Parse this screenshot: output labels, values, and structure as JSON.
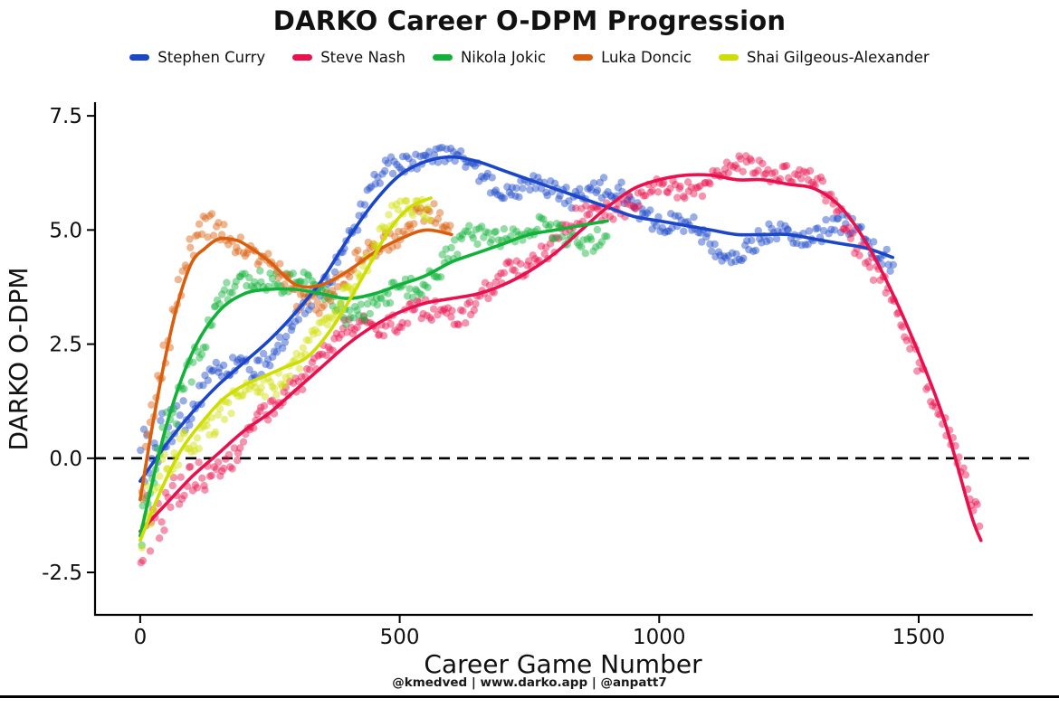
{
  "chart_data": {
    "type": "scatter",
    "title": "DARKO Career O-DPM Progression",
    "xlabel": "Career Game Number",
    "ylabel": "DARKO O-DPM",
    "caption": "@kmedved | www.darko.app | @anpatt7",
    "xlim": [
      -87,
      1718
    ],
    "ylim": [
      -3.43,
      7.76
    ],
    "xticks": [
      0,
      500,
      1000,
      1500
    ],
    "xtick_labels": [
      "0",
      "500",
      "1000",
      "1500"
    ],
    "yticks": [
      -2.5,
      0,
      2.5,
      5,
      7.5
    ],
    "ytick_labels": [
      "-2.5",
      "0.0",
      "2.5",
      "5.0",
      "7.5"
    ],
    "zero_line_y": 0,
    "grid": false,
    "legend_position": "top",
    "scatter_style": {
      "alpha": 0.45,
      "radius": 4.2
    },
    "series": [
      {
        "name": "Stephen Curry",
        "color": "#1b46c8",
        "x": [
          0,
          50,
          100,
          150,
          200,
          250,
          300,
          350,
          400,
          450,
          500,
          550,
          600,
          650,
          700,
          750,
          800,
          850,
          900,
          950,
          1000,
          1050,
          1100,
          1150,
          1200,
          1250,
          1300,
          1350,
          1400,
          1450
        ],
        "y": [
          -0.5,
          0.3,
          1.0,
          1.6,
          2.1,
          2.6,
          3.2,
          3.9,
          4.8,
          5.6,
          6.2,
          6.5,
          6.6,
          6.5,
          6.3,
          6.1,
          5.9,
          5.7,
          5.5,
          5.3,
          5.2,
          5.1,
          5.0,
          4.9,
          4.9,
          4.9,
          4.8,
          4.7,
          4.6,
          4.4
        ]
      },
      {
        "name": "Steve Nash",
        "color": "#e8114e",
        "x": [
          0,
          50,
          100,
          150,
          200,
          250,
          300,
          350,
          400,
          450,
          500,
          550,
          600,
          650,
          700,
          750,
          800,
          850,
          900,
          950,
          1000,
          1050,
          1100,
          1150,
          1200,
          1250,
          1300,
          1350,
          1400,
          1450,
          1500,
          1550,
          1600,
          1620
        ],
        "y": [
          -1.6,
          -1.0,
          -0.4,
          0.1,
          0.6,
          1.0,
          1.5,
          2.0,
          2.5,
          2.9,
          3.2,
          3.4,
          3.5,
          3.6,
          3.8,
          4.1,
          4.5,
          5.0,
          5.5,
          5.9,
          6.1,
          6.2,
          6.2,
          6.1,
          6.1,
          6.0,
          5.9,
          5.5,
          4.7,
          3.6,
          2.3,
          0.8,
          -1.2,
          -1.8
        ]
      },
      {
        "name": "Nikola Jokic",
        "color": "#12b23a",
        "x": [
          0,
          50,
          100,
          150,
          200,
          250,
          300,
          350,
          400,
          450,
          500,
          550,
          600,
          650,
          700,
          750,
          800,
          850,
          900
        ],
        "y": [
          -1.7,
          0.7,
          2.3,
          3.2,
          3.6,
          3.7,
          3.7,
          3.6,
          3.5,
          3.6,
          3.8,
          4.0,
          4.3,
          4.5,
          4.7,
          4.9,
          5.0,
          5.1,
          5.2
        ]
      },
      {
        "name": "Luka Doncic",
        "color": "#d95f0e",
        "x": [
          0,
          25,
          50,
          75,
          100,
          125,
          150,
          175,
          200,
          250,
          300,
          350,
          400,
          450,
          500,
          550,
          600
        ],
        "y": [
          -0.9,
          0.8,
          2.3,
          3.5,
          4.3,
          4.6,
          4.8,
          4.8,
          4.7,
          4.3,
          3.8,
          3.8,
          4.1,
          4.5,
          4.8,
          5.0,
          4.9
        ]
      },
      {
        "name": "Shai Gilgeous-Alexander",
        "color": "#cedd02",
        "x": [
          0,
          40,
          80,
          120,
          160,
          200,
          240,
          280,
          320,
          360,
          400,
          440,
          480,
          520,
          560
        ],
        "y": [
          -1.8,
          -0.7,
          0.2,
          0.8,
          1.3,
          1.6,
          1.8,
          2.0,
          2.2,
          2.7,
          3.4,
          4.2,
          5.0,
          5.5,
          5.7
        ]
      }
    ]
  }
}
